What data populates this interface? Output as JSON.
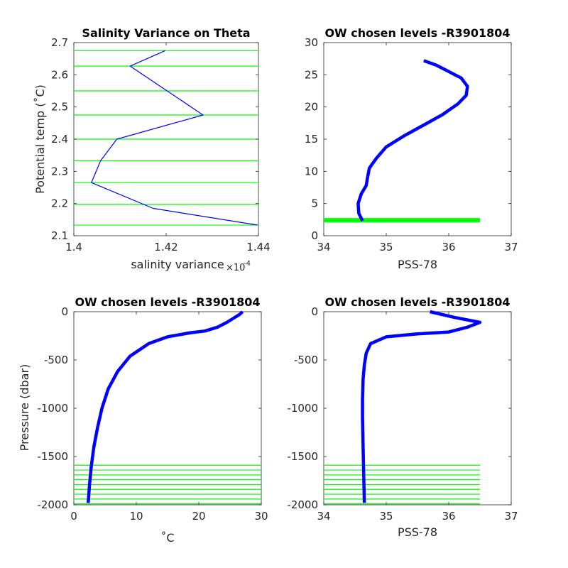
{
  "chart_data": [
    {
      "type": "line",
      "title": "Salinity Variance on Theta",
      "xlabel": "salinity variance",
      "x_multiplier": "×10",
      "x_multiplier_exp": "-4",
      "ylabel": "Potential temp (˚C)",
      "xlim": [
        1.4,
        1.44
      ],
      "ylim": [
        2.1,
        2.7
      ],
      "xticks": [
        "1.4",
        "1.42",
        "1.44"
      ],
      "yticks": [
        "2.1",
        "2.2",
        "2.3",
        "2.4",
        "2.5",
        "2.6",
        "2.7"
      ],
      "series": [
        {
          "color": "#0000ff",
          "x": [
            1.4198,
            1.4122,
            1.428,
            1.4093,
            1.4058,
            1.4038,
            1.4172,
            1.4398
          ],
          "y": [
            2.675,
            2.627,
            2.475,
            2.4,
            2.333,
            2.265,
            2.185,
            2.133
          ]
        }
      ],
      "hlines": {
        "color": "#00ff00",
        "y": [
          2.675,
          2.627,
          2.55,
          2.475,
          2.4,
          2.333,
          2.265,
          2.197,
          2.133
        ]
      }
    },
    {
      "type": "line",
      "title": "OW chosen levels -R3901804",
      "xlabel": "PSS-78",
      "ylabel": "",
      "xlim": [
        34,
        37
      ],
      "ylim": [
        0,
        30
      ],
      "xticks": [
        "34",
        "35",
        "36",
        "37"
      ],
      "yticks": [
        "0",
        "5",
        "10",
        "15",
        "20",
        "25",
        "30"
      ],
      "series": [
        {
          "color": "#0000ff",
          "x": [
            34.62,
            34.56,
            34.55,
            34.6,
            34.68,
            34.7,
            34.73,
            34.84,
            35.0,
            35.3,
            35.6,
            35.9,
            36.15,
            36.28,
            36.3,
            36.2,
            36.0,
            35.8,
            35.6
          ],
          "y": [
            2.3,
            3.5,
            5,
            6.5,
            7.8,
            9,
            10.5,
            12,
            13.8,
            15.6,
            17.2,
            18.8,
            20.5,
            21.8,
            23.2,
            24.5,
            25.5,
            26.5,
            27.2
          ]
        }
      ],
      "hlines": {
        "color": "#00ff00",
        "y": [
          2.13,
          2.2,
          2.27,
          2.33,
          2.4,
          2.48,
          2.55,
          2.63,
          2.68
        ],
        "xrange": [
          34.0,
          36.5
        ]
      }
    },
    {
      "type": "line",
      "title": "OW chosen levels -R3901804",
      "xlabel": "˚C",
      "ylabel": "Pressure (dbar)",
      "xlim": [
        0,
        30
      ],
      "ylim": [
        -2000,
        0
      ],
      "xticks": [
        "0",
        "10",
        "20",
        "30"
      ],
      "yticks": [
        "-2000",
        "-1500",
        "-1000",
        "-500",
        "0"
      ],
      "series": [
        {
          "color": "#0000ff",
          "x": [
            2.3,
            2.5,
            2.8,
            3.2,
            3.8,
            4.5,
            5.5,
            7.0,
            9.0,
            12.0,
            15.0,
            18.5,
            21.0,
            23.0,
            24.5,
            25.5,
            26.5,
            27.0
          ],
          "y": [
            -1980,
            -1800,
            -1600,
            -1400,
            -1200,
            -1000,
            -800,
            -620,
            -460,
            -330,
            -260,
            -220,
            -200,
            -160,
            -110,
            -70,
            -30,
            0
          ]
        }
      ],
      "hlines": {
        "color": "#00ff00",
        "y": [
          -1590,
          -1640,
          -1690,
          -1740,
          -1790,
          -1840,
          -1890,
          -1940,
          -1990
        ],
        "xrange": [
          0,
          30
        ]
      }
    },
    {
      "type": "line",
      "title": "OW chosen levels -R3901804",
      "xlabel": "PSS-78",
      "ylabel": "",
      "xlim": [
        34,
        37
      ],
      "ylim": [
        -2000,
        0
      ],
      "xticks": [
        "34",
        "35",
        "36",
        "37"
      ],
      "yticks": [
        "-2000",
        "-1500",
        "-1000",
        "-500",
        "0"
      ],
      "series": [
        {
          "color": "#0000ff",
          "x": [
            34.65,
            34.64,
            34.63,
            34.62,
            34.62,
            34.63,
            34.65,
            34.68,
            34.75,
            35.0,
            35.5,
            36.0,
            36.3,
            36.5,
            36.1,
            35.7
          ],
          "y": [
            -1980,
            -1700,
            -1400,
            -1100,
            -900,
            -700,
            -550,
            -430,
            -330,
            -260,
            -230,
            -210,
            -160,
            -110,
            -60,
            0
          ]
        }
      ],
      "hlines": {
        "color": "#00ff00",
        "y": [
          -1590,
          -1640,
          -1690,
          -1740,
          -1790,
          -1840,
          -1890,
          -1940,
          -1990
        ],
        "xrange": [
          34.0,
          36.5
        ]
      }
    }
  ]
}
